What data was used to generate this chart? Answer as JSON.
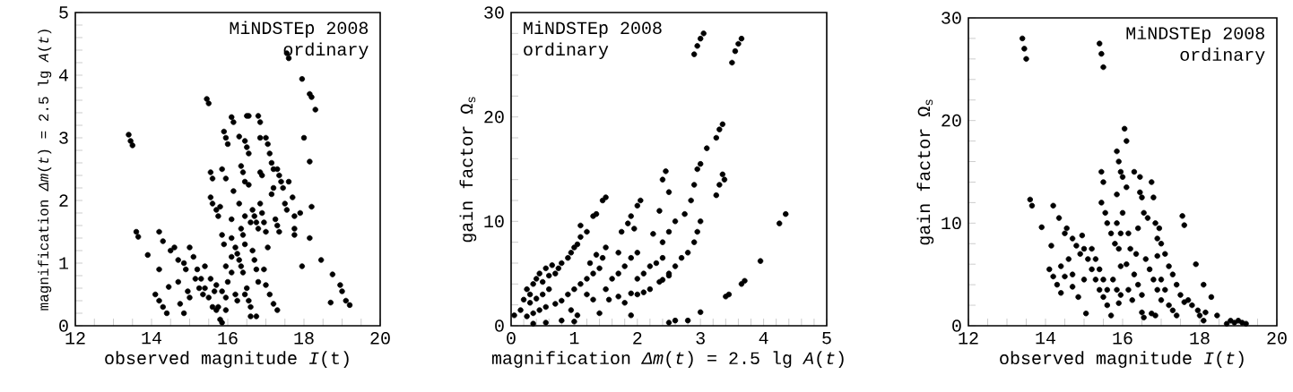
{
  "chart_data": [
    {
      "type": "scatter",
      "xlabel": "observed magnitude *I*(t)",
      "ylabel": "magnification *Δm*(*t*) = 2.5 lg *A*(*t*)",
      "annotations": [
        "MiNDSTEp 2008",
        "ordinary"
      ],
      "color": "#000000",
      "marker": "circle",
      "xlim": [
        12,
        20
      ],
      "ylim": [
        0,
        5
      ],
      "xticks": [
        12,
        {
          "value": 12.5,
          "label": null
        },
        {
          "value": 13,
          "label": null
        },
        {
          "value": 13.5,
          "label": null
        },
        14,
        {
          "value": 14.5,
          "label": null
        },
        {
          "value": 15,
          "label": null
        },
        {
          "value": 15.5,
          "label": null
        },
        16,
        {
          "value": 16.5,
          "label": null
        },
        {
          "value": 17,
          "label": null
        },
        {
          "value": 17.5,
          "label": null
        },
        18,
        {
          "value": 18.5,
          "label": null
        },
        {
          "value": 19,
          "label": null
        },
        {
          "value": 19.5,
          "label": null
        },
        20
      ],
      "yticks": [
        0,
        {
          "value": 0.2,
          "label": null
        },
        {
          "value": 0.4,
          "label": null
        },
        {
          "value": 0.6,
          "label": null
        },
        {
          "value": 0.8,
          "label": null
        },
        1,
        {
          "value": 1.2,
          "label": null
        },
        {
          "value": 1.4,
          "label": null
        },
        {
          "value": 1.6,
          "label": null
        },
        {
          "value": 1.8,
          "label": null
        },
        2,
        {
          "value": 2.2,
          "label": null
        },
        {
          "value": 2.4,
          "label": null
        },
        {
          "value": 2.6,
          "label": null
        },
        {
          "value": 2.8,
          "label": null
        },
        3,
        {
          "value": 3.2,
          "label": null
        },
        {
          "value": 3.4,
          "label": null
        },
        {
          "value": 3.6,
          "label": null
        },
        {
          "value": 3.8,
          "label": null
        },
        4,
        {
          "value": 4.2,
          "label": null
        },
        {
          "value": 4.4,
          "label": null
        },
        {
          "value": 4.6,
          "label": null
        },
        {
          "value": 4.8,
          "label": null
        },
        5
      ],
      "x": [
        13.4,
        13.45,
        13.5,
        13.6,
        13.65,
        13.9,
        14.2,
        14.1,
        14.2,
        14.3,
        14.4,
        14.2,
        14.3,
        14.45,
        14.5,
        14.6,
        14.7,
        14.7,
        14.75,
        14.85,
        14.9,
        14.85,
        14.95,
        15.0,
        15.0,
        15.1,
        15.2,
        15.3,
        15.4,
        15.5,
        15.15,
        15.25,
        15.35,
        15.4,
        15.55,
        15.65,
        15.75,
        15.8,
        15.85,
        15.6,
        15.7,
        15.7,
        15.85,
        15.95,
        15.95,
        15.95,
        15.9,
        15.85,
        15.55,
        15.6,
        15.45,
        15.5,
        15.55,
        15.6,
        15.7,
        15.75,
        15.8,
        15.85,
        15.95,
        15.9,
        15.95,
        16.0,
        16.0,
        16.1,
        16.1,
        16.1,
        16.2,
        16.25,
        16.3,
        16.35,
        16.1,
        16.15,
        16.15,
        16.1,
        16.2,
        16.25,
        16.3,
        16.3,
        16.35,
        16.4,
        16.35,
        16.4,
        16.4,
        16.45,
        16.55,
        16.6,
        16.45,
        16.45,
        16.45,
        16.5,
        16.45,
        16.55,
        16.5,
        16.55,
        16.55,
        16.5,
        16.6,
        16.6,
        16.65,
        16.7,
        16.75,
        16.8,
        16.65,
        16.7,
        16.75,
        16.8,
        16.75,
        16.8,
        16.85,
        16.85,
        16.85,
        16.9,
        16.85,
        16.9,
        16.95,
        17.0,
        16.95,
        17.0,
        17.1,
        17.2,
        17.3,
        17.0,
        17.05,
        17.1,
        17.15,
        17.2,
        17.05,
        17.15,
        17.2,
        17.25,
        17.3,
        17.35,
        17.3,
        17.35,
        17.4,
        17.45,
        17.5,
        17.55,
        17.55,
        17.6,
        17.6,
        17.7,
        17.75,
        17.75,
        17.75,
        17.9,
        17.95,
        18.0,
        17.95,
        18.15,
        18.2,
        18.3,
        18.15,
        18.2,
        18.15,
        18.45,
        18.7,
        18.75,
        18.95,
        19.0,
        19.1,
        19.2
      ],
      "values": [
        3.05,
        2.95,
        2.88,
        1.5,
        1.42,
        1.13,
        0.9,
        0.5,
        0.4,
        0.3,
        0.2,
        1.5,
        1.35,
        0.62,
        1.2,
        1.25,
        1.05,
        0.7,
        0.35,
        0.2,
        0.9,
        1.0,
        0.55,
        0.45,
        1.25,
        1.1,
        0.9,
        0.75,
        0.6,
        0.45,
        0.75,
        0.6,
        0.5,
        0.95,
        0.75,
        0.55,
        0.3,
        0.1,
        0.05,
        0.3,
        0.25,
        0.65,
        0.55,
        0.45,
        0.25,
        0.95,
        1.3,
        1.45,
        2.45,
        2.35,
        3.62,
        3.55,
        2.05,
        1.95,
        1.85,
        1.75,
        1.9,
        2.5,
        2.35,
        3.1,
        3.0,
        2.9,
        0.7,
        0.85,
        1.4,
        1.1,
        1.25,
        1.15,
        1.05,
        0.95,
        3.33,
        3.25,
        2.15,
        1.7,
        0.5,
        0.4,
        3.02,
        1.95,
        2.55,
        2.45,
        1.55,
        1.45,
        0.85,
        0.5,
        0.4,
        0.3,
        1.3,
        1.75,
        2.95,
        2.85,
        2.3,
        2.25,
        3.35,
        3.35,
        2.75,
        0.6,
        0.15,
        1.65,
        1.85,
        1.75,
        1.65,
        1.55,
        1.2,
        1.05,
        0.9,
        0.7,
        0.15,
        3.35,
        3.25,
        3.0,
        2.45,
        2.4,
        1.95,
        1.8,
        1.65,
        1.5,
        0.9,
        0.65,
        0.5,
        0.35,
        0.25,
        3.0,
        2.9,
        2.75,
        2.6,
        2.5,
        1.25,
        2.1,
        2.2,
        1.7,
        1.6,
        1.5,
        2.5,
        2.4,
        2.3,
        2.2,
        1.95,
        1.85,
        4.35,
        4.27,
        2.3,
        2.05,
        1.75,
        1.55,
        1.45,
        1.8,
        3.94,
        3.0,
        0.95,
        3.7,
        3.65,
        3.45,
        2.62,
        1.9,
        1.4,
        1.05,
        0.37,
        0.82,
        0.65,
        0.55,
        0.4,
        0.33
      ]
    },
    {
      "type": "scatter",
      "xlabel": "magnification *Δm*(*t*) = 2.5 lg *A*(*t*)",
      "ylabel": "gain factor Ω$_{s}$",
      "annotations": [
        "MiNDSTEp 2008",
        "ordinary"
      ],
      "color": "#000000",
      "marker": "circle",
      "xlim": [
        0,
        5
      ],
      "ylim": [
        0,
        30
      ],
      "xticks": [
        0,
        {
          "value": 0.2,
          "label": null
        },
        {
          "value": 0.4,
          "label": null
        },
        {
          "value": 0.6,
          "label": null
        },
        {
          "value": 0.8,
          "label": null
        },
        1,
        {
          "value": 1.2,
          "label": null
        },
        {
          "value": 1.4,
          "label": null
        },
        {
          "value": 1.6,
          "label": null
        },
        {
          "value": 1.8,
          "label": null
        },
        2,
        {
          "value": 2.2,
          "label": null
        },
        {
          "value": 2.4,
          "label": null
        },
        {
          "value": 2.6,
          "label": null
        },
        {
          "value": 2.8,
          "label": null
        },
        3,
        {
          "value": 3.2,
          "label": null
        },
        {
          "value": 3.4,
          "label": null
        },
        {
          "value": 3.6,
          "label": null
        },
        {
          "value": 3.8,
          "label": null
        },
        4,
        {
          "value": 4.2,
          "label": null
        },
        {
          "value": 4.4,
          "label": null
        },
        {
          "value": 4.6,
          "label": null
        },
        {
          "value": 4.8,
          "label": null
        },
        5
      ],
      "yticks": [
        0,
        {
          "value": 2,
          "label": null
        },
        {
          "value": 4,
          "label": null
        },
        {
          "value": 6,
          "label": null
        },
        {
          "value": 8,
          "label": null
        },
        10,
        {
          "value": 12,
          "label": null
        },
        {
          "value": 14,
          "label": null
        },
        {
          "value": 16,
          "label": null
        },
        {
          "value": 18,
          "label": null
        },
        20,
        {
          "value": 22,
          "label": null
        },
        {
          "value": 24,
          "label": null
        },
        {
          "value": 26,
          "label": null
        },
        {
          "value": 28,
          "label": null
        },
        30
      ],
      "x": [
        0.05,
        0.15,
        0.2,
        0.25,
        0.3,
        0.35,
        0.4,
        0.45,
        0.5,
        0.55,
        0.6,
        0.65,
        0.7,
        0.75,
        0.8,
        0.9,
        0.95,
        1.0,
        1.05,
        1.1,
        1.2,
        1.1,
        1.3,
        1.35,
        1.45,
        1.5,
        0.3,
        0.4,
        0.5,
        0.6,
        0.25,
        0.35,
        0.45,
        0.55,
        0.7,
        0.8,
        0.9,
        1.0,
        1.1,
        1.2,
        1.3,
        1.4,
        1.45,
        1.5,
        1.25,
        1.35,
        1.2,
        1.3,
        1.4,
        1.05,
        0.95,
        1.5,
        1.6,
        1.7,
        1.8,
        1.9,
        2.0,
        1.55,
        1.7,
        1.8,
        1.9,
        2.0,
        1.9,
        1.7,
        1.75,
        1.85,
        1.9,
        2.0,
        2.05,
        1.95,
        2.0,
        2.1,
        2.2,
        2.3,
        2.4,
        2.25,
        2.1,
        2.2,
        2.35,
        2.5,
        2.35,
        2.4,
        2.45,
        2.5,
        2.4,
        2.5,
        2.6,
        2.4,
        2.5,
        2.6,
        2.7,
        2.8,
        2.9,
        2.95,
        3.0,
        2.6,
        2.75,
        2.85,
        2.9,
        2.95,
        3.0,
        3.1,
        2.9,
        2.95,
        3.0,
        3.05,
        3.0,
        2.5,
        2.8,
        3.25,
        3.3,
        3.35,
        3.38,
        3.25,
        3.3,
        3.35,
        3.5,
        3.55,
        3.6,
        3.65,
        3.4,
        3.45,
        3.65,
        3.7,
        3.95,
        4.25,
        4.35,
        0.35,
        0.55,
        0.8,
        1.0
      ],
      "values": [
        1.0,
        1.5,
        2.5,
        3.5,
        3.0,
        4.0,
        4.5,
        5.0,
        4.2,
        5.5,
        4.8,
        5.8,
        5.0,
        5.5,
        6.0,
        6.5,
        7.0,
        7.5,
        7.8,
        8.5,
        9.0,
        9.6,
        10.5,
        10.7,
        12.0,
        12.3,
        2.2,
        2.6,
        3.0,
        3.5,
        0.9,
        1.2,
        1.5,
        1.8,
        2.1,
        2.4,
        3.0,
        3.5,
        4.0,
        4.5,
        5.0,
        5.5,
        6.5,
        7.5,
        6.0,
        6.8,
        3.0,
        2.5,
        1.2,
        1.0,
        1.5,
        3.5,
        4.5,
        5.0,
        5.7,
        6.5,
        7.0,
        2.5,
        2.8,
        2.2,
        3.1,
        3.0,
        1.0,
        7.0,
        9.0,
        9.8,
        10.5,
        11.5,
        12.0,
        9.3,
        4.5,
        5.0,
        5.7,
        6.0,
        6.5,
        8.8,
        3.2,
        3.5,
        4.2,
        4.8,
        11.0,
        14.0,
        14.8,
        12.8,
        8.0,
        9.0,
        10.0,
        4.4,
        5.0,
        5.7,
        6.5,
        7.0,
        8.0,
        9.0,
        10.0,
        0.5,
        10.7,
        12.0,
        13.5,
        15.0,
        15.5,
        17.0,
        26.0,
        26.8,
        27.5,
        28.0,
        1.3,
        0.3,
        0.5,
        12.5,
        13.5,
        14.5,
        14.0,
        18.0,
        18.8,
        19.3,
        25.2,
        26.3,
        27.0,
        27.5,
        2.8,
        3.0,
        4.0,
        4.3,
        6.2,
        9.8,
        10.7,
        0.2,
        0.3,
        0.5,
        0.4
      ]
    },
    {
      "type": "scatter",
      "xlabel": "observed magnitude *I*(*t*)",
      "ylabel": "gain factor Ω$_{s}$",
      "annotations": [
        "MiNDSTEp 2008",
        "ordinary"
      ],
      "color": "#000000",
      "marker": "circle",
      "xlim": [
        12,
        20
      ],
      "ylim": [
        0,
        30
      ],
      "xticks": [
        12,
        {
          "value": 12.5,
          "label": null
        },
        {
          "value": 13,
          "label": null
        },
        {
          "value": 13.5,
          "label": null
        },
        14,
        {
          "value": 14.5,
          "label": null
        },
        {
          "value": 15,
          "label": null
        },
        {
          "value": 15.5,
          "label": null
        },
        16,
        {
          "value": 16.5,
          "label": null
        },
        {
          "value": 17,
          "label": null
        },
        {
          "value": 17.5,
          "label": null
        },
        18,
        {
          "value": 18.5,
          "label": null
        },
        {
          "value": 19,
          "label": null
        },
        {
          "value": 19.5,
          "label": null
        },
        20
      ],
      "yticks": [
        0,
        {
          "value": 2,
          "label": null
        },
        {
          "value": 4,
          "label": null
        },
        {
          "value": 6,
          "label": null
        },
        {
          "value": 8,
          "label": null
        },
        10,
        {
          "value": 12,
          "label": null
        },
        {
          "value": 14,
          "label": null
        },
        {
          "value": 16,
          "label": null
        },
        {
          "value": 18,
          "label": null
        },
        20,
        {
          "value": 22,
          "label": null
        },
        {
          "value": 24,
          "label": null
        },
        {
          "value": 26,
          "label": null
        },
        {
          "value": 28,
          "label": null
        },
        30
      ],
      "x": [
        13.4,
        13.45,
        13.5,
        15.4,
        15.45,
        15.5,
        13.6,
        13.65,
        13.9,
        14.15,
        14.2,
        14.35,
        14.1,
        14.2,
        14.3,
        14.4,
        14.4,
        14.5,
        14.55,
        14.5,
        14.6,
        14.7,
        14.7,
        14.8,
        14.9,
        14.85,
        14.7,
        14.95,
        15.0,
        15.1,
        15.2,
        15.3,
        15.4,
        15.5,
        15.0,
        15.05,
        15.2,
        15.3,
        15.4,
        15.5,
        15.6,
        15.45,
        15.5,
        15.45,
        15.55,
        15.6,
        15.7,
        15.8,
        15.6,
        15.7,
        15.75,
        15.85,
        15.95,
        15.9,
        15.85,
        15.85,
        15.95,
        15.9,
        15.95,
        16.0,
        15.85,
        15.9,
        15.95,
        16.0,
        16.05,
        16.1,
        16.1,
        16.15,
        16.2,
        16.1,
        16.3,
        16.4,
        16.5,
        16.15,
        16.25,
        16.3,
        16.35,
        16.5,
        16.55,
        16.45,
        16.5,
        16.55,
        16.45,
        16.4,
        16.6,
        16.7,
        16.8,
        16.9,
        17.0,
        16.85,
        16.75,
        16.65,
        16.75,
        16.8,
        16.85,
        16.9,
        16.95,
        17.0,
        16.9,
        17.0,
        17.1,
        17.2,
        17.3,
        17.4,
        17.1,
        17.2,
        17.3,
        17.4,
        17.5,
        17.6,
        17.55,
        17.6,
        17.7,
        17.8,
        17.9,
        17.95,
        18.0,
        18.1,
        18.15,
        18.1,
        18.3,
        18.45,
        18.7,
        18.8,
        18.9,
        19.0,
        19.1,
        19.2
      ],
      "values": [
        28.0,
        27.0,
        26.0,
        27.5,
        26.5,
        25.2,
        12.3,
        11.7,
        9.6,
        7.8,
        11.7,
        10.5,
        5.5,
        4.8,
        4.0,
        3.2,
        5.8,
        4.8,
        9.5,
        9.0,
        6.5,
        5.0,
        8.5,
        7.8,
        7.0,
        2.8,
        3.8,
        8.8,
        7.5,
        6.5,
        5.5,
        4.5,
        3.5,
        2.8,
        4.5,
        1.2,
        7.5,
        6.5,
        5.5,
        4.5,
        3.5,
        15.0,
        14.0,
        12.0,
        11.0,
        10.0,
        9.0,
        8.0,
        2.0,
        1.0,
        4.5,
        3.5,
        3.0,
        2.2,
        12.8,
        10.0,
        9.0,
        7.5,
        5.8,
        11.0,
        17.0,
        16.0,
        15.0,
        14.5,
        19.2,
        18.0,
        13.5,
        9.0,
        7.5,
        6.0,
        5.0,
        4.0,
        3.0,
        3.5,
        2.5,
        15.0,
        7.0,
        1.3,
        0.8,
        14.5,
        12.5,
        11.0,
        13.0,
        9.5,
        6.5,
        5.5,
        4.5,
        3.5,
        2.5,
        1.0,
        1.2,
        10.5,
        14.0,
        12.5,
        10.0,
        8.5,
        9.5,
        8.0,
        6.8,
        4.5,
        3.5,
        2.0,
        1.5,
        1.0,
        7.0,
        5.8,
        5.0,
        4.0,
        3.0,
        2.3,
        10.7,
        9.8,
        2.5,
        2.0,
        6.0,
        1.5,
        1.0,
        4.0,
        1.3,
        0.5,
        2.8,
        1.0,
        0.2,
        0.5,
        0.3,
        0.5,
        0.3,
        0.2
      ]
    }
  ]
}
